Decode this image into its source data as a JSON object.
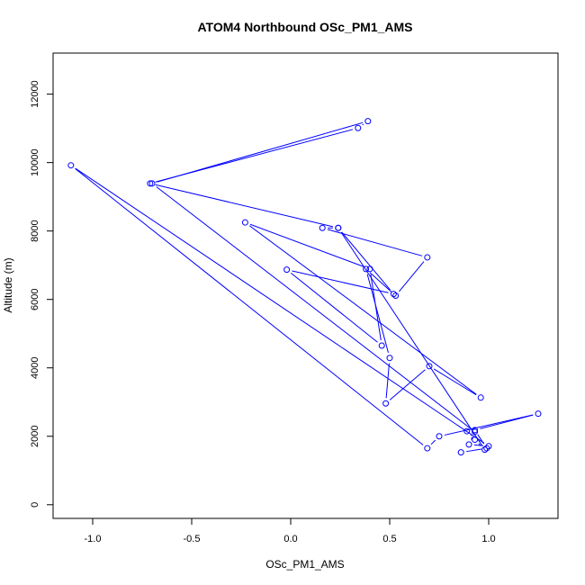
{
  "chart_data": {
    "type": "line",
    "title": "ATOM4 Northbound OSc_PM1_AMS",
    "xlabel": "OSc_PM1_AMS",
    "ylabel": "Altitude (m)",
    "xlim": [
      -1.2,
      1.35
    ],
    "ylim": [
      -400,
      13200
    ],
    "xticks": [
      -1.0,
      -0.5,
      0.0,
      0.5,
      1.0
    ],
    "xtick_labels": [
      "-1.0",
      "-0.5",
      "0.0",
      "0.5",
      "1.0"
    ],
    "yticks": [
      0,
      2000,
      4000,
      6000,
      8000,
      10000,
      12000
    ],
    "ytick_labels": [
      "0",
      "2000",
      "4000",
      "6000",
      "8000",
      "10000",
      "12000"
    ],
    "grid": false,
    "series": [
      {
        "color": "#0000ff",
        "marker": "open-circle",
        "x": [
          0.86,
          0.99,
          0.93,
          1.25,
          0.75,
          0.69,
          -1.11,
          1.0,
          0.9,
          0.93,
          -0.7,
          0.39,
          0.34,
          -0.71,
          0.24,
          0.16,
          0.69,
          0.53,
          0.38,
          0.5,
          0.48,
          0.7,
          0.96,
          -0.23,
          0.4,
          0.46,
          -0.02,
          0.52,
          0.24,
          0.98,
          0.93,
          0.89
        ],
        "y": [
          1530,
          1650,
          2180,
          2660,
          2000,
          1650,
          9920,
          1710,
          1760,
          2130,
          9390,
          11210,
          11010,
          9390,
          8090,
          8090,
          7230,
          6110,
          6890,
          4290,
          2960,
          4050,
          3130,
          8250,
          6890,
          4650,
          6870,
          6160,
          8090,
          1610,
          1900,
          2150
        ]
      }
    ]
  }
}
